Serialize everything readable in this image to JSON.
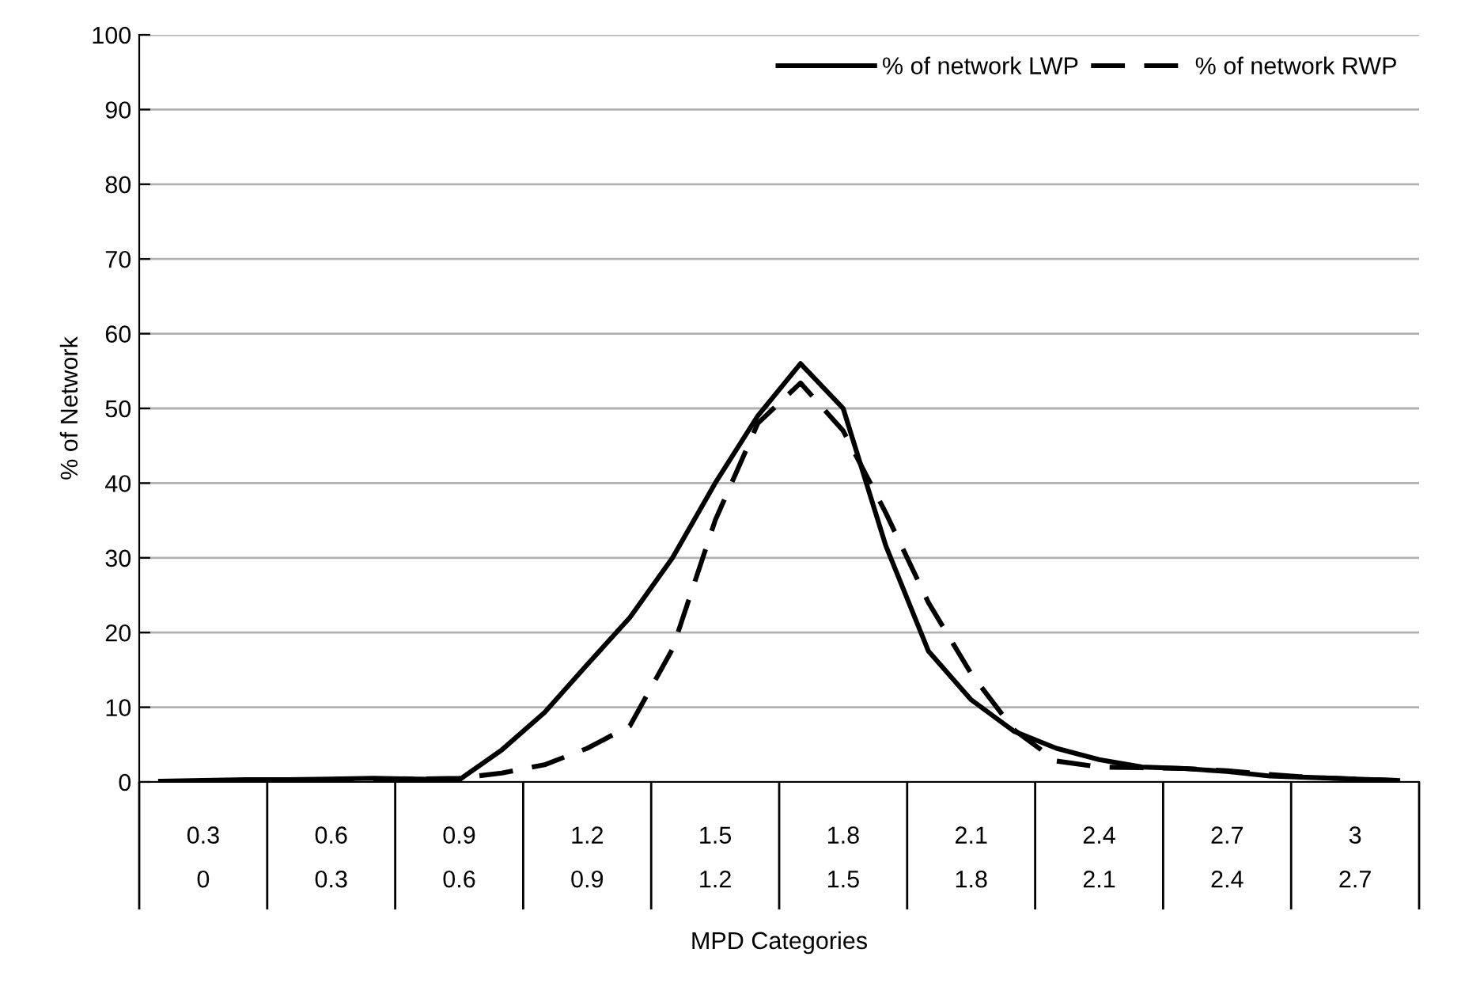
{
  "chart_data": {
    "type": "line",
    "xlabel": "MPD Categories",
    "ylabel": "% of Network",
    "categories": [
      null,
      "0.3",
      null,
      null,
      "0.6",
      null,
      null,
      "0.9",
      null,
      null,
      "1.2",
      null,
      null,
      "1.5",
      null,
      null,
      "1.8",
      null,
      null,
      "2.1",
      null,
      null,
      "2.4",
      null,
      null,
      "2.7",
      null,
      null,
      "3",
      null
    ],
    "annotations": [
      "0",
      "0.3",
      "0.6",
      "0.9",
      "1.2",
      "1.5",
      "1.8",
      "2.1",
      "2.4",
      "2.7"
    ],
    "ylim": [
      0,
      100
    ],
    "yticks": [
      0,
      10,
      20,
      30,
      40,
      50,
      60,
      70,
      80,
      90,
      100
    ],
    "grid": "y",
    "legend": "top right",
    "series": [
      {
        "name": "% of network LWP",
        "color": "#000000",
        "line_style": "solid",
        "values": [
          0.1,
          0.2,
          0.3,
          0.3,
          0.4,
          0.5,
          0.4,
          0.3,
          4.3,
          9.3,
          15.7,
          22,
          30,
          40,
          49,
          56,
          50,
          31.6,
          17.5,
          11,
          6.8,
          4.5,
          3,
          2,
          1.8,
          1.4,
          0.8,
          0.6,
          0.4,
          0.2
        ]
      },
      {
        "name": "% of network RWP",
        "color": "#000000",
        "line_style": "dashed",
        "values": [
          0.1,
          0.1,
          0.2,
          0.3,
          0.3,
          0.4,
          0.4,
          0.5,
          1.2,
          2.3,
          4.5,
          7.5,
          17.8,
          35,
          48,
          53.4,
          47,
          36,
          24,
          14.5,
          7,
          2.8,
          2,
          1.9,
          1.8,
          1.5,
          1,
          0.6,
          0.4,
          0.2
        ]
      }
    ]
  }
}
